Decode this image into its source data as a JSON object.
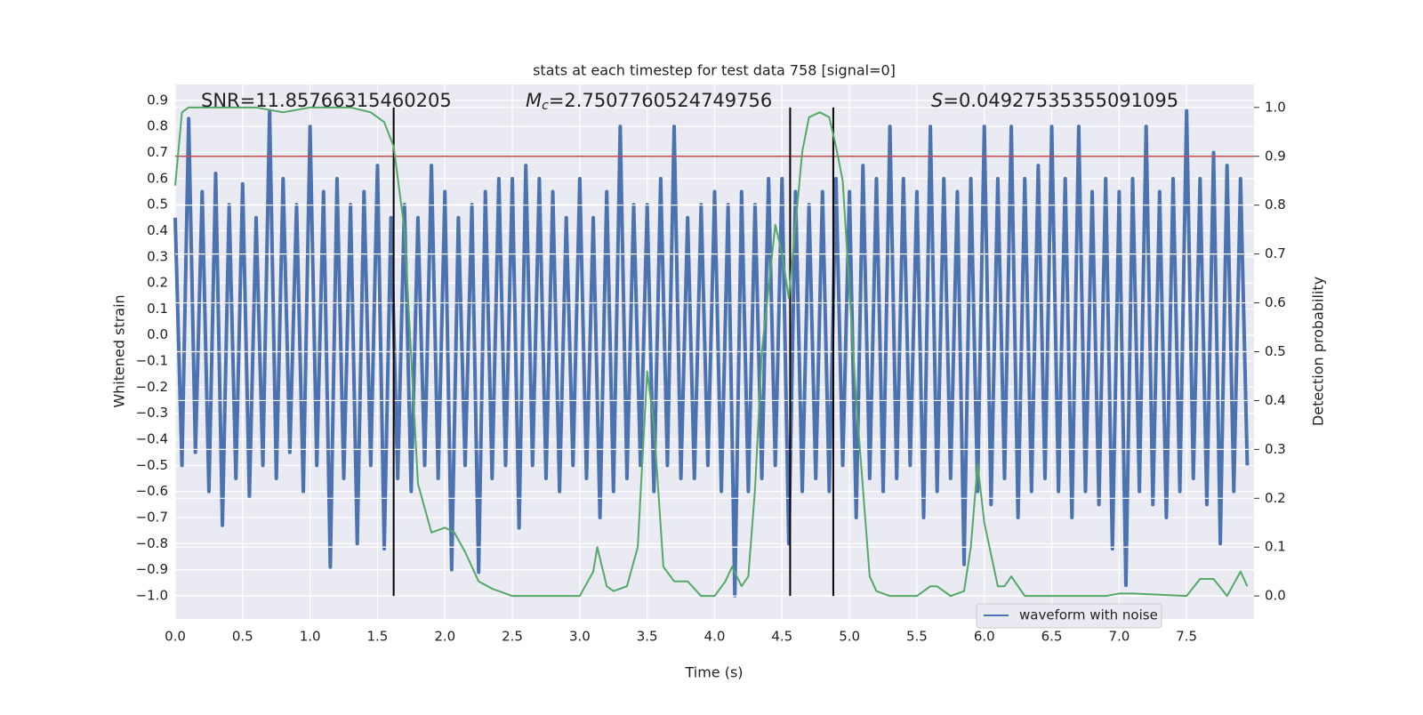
{
  "chart_data": {
    "type": "line",
    "title": "stats at each timestep for test data 758 [signal=0]",
    "xlabel": "Time (s)",
    "ylabel": "Whitened strain",
    "y2label": "Detection probability",
    "annotations": [
      {
        "text": "SNR=11.85766315460205"
      },
      {
        "symbol": "M",
        "subscript": "c",
        "text": "=2.7507760524749756"
      },
      {
        "symbol": "S",
        "text": "=0.04927535355091095"
      }
    ],
    "xlim": [
      0,
      8
    ],
    "ylim": [
      -1.089,
      0.961
    ],
    "y2lim": [
      -0.047,
      1.047
    ],
    "xticks": [
      {
        "value": 0,
        "label": "0.0"
      },
      0.5,
      {
        "value": 1,
        "label": "1.0"
      },
      1.5,
      {
        "value": 2,
        "label": "2.0"
      },
      2.5,
      {
        "value": 3,
        "label": "3.0"
      },
      3.5,
      {
        "value": 4,
        "label": "4.0"
      },
      4.5,
      {
        "value": 5,
        "label": "5.0"
      },
      5.5,
      {
        "value": 6,
        "label": "6.0"
      },
      6.5,
      {
        "value": 7,
        "label": "7.0"
      },
      7.5
    ],
    "yticks": [
      {
        "value": -1,
        "label": "−1.0"
      },
      {
        "value": -0.9,
        "label": "−0.9"
      },
      {
        "value": -0.8,
        "label": "−0.8"
      },
      {
        "value": -0.7,
        "label": "−0.7"
      },
      {
        "value": -0.6,
        "label": "−0.6"
      },
      {
        "value": -0.5,
        "label": "−0.5"
      },
      {
        "value": -0.4,
        "label": "−0.4"
      },
      {
        "value": -0.3,
        "label": "−0.3"
      },
      {
        "value": -0.2,
        "label": "−0.2"
      },
      {
        "value": -0.1,
        "label": "−0.1"
      },
      {
        "value": 0,
        "label": "0.0"
      },
      0.1,
      0.2,
      0.3,
      0.4,
      0.5,
      0.6,
      0.7,
      0.8,
      0.9
    ],
    "y2ticks": [
      {
        "value": 0,
        "label": "0.0"
      },
      0.1,
      0.2,
      0.3,
      0.4,
      0.5,
      0.6,
      0.7,
      0.8,
      0.9,
      {
        "value": 1,
        "label": "1.0"
      }
    ],
    "grid": true,
    "legend": "lower right",
    "hlines": [
      {
        "value": 0.9,
        "axis": "y2",
        "color": "#c44e52"
      }
    ],
    "vlines": {
      "x": [
        1.62,
        4.56,
        4.88
      ],
      "span": [
        0,
        1
      ],
      "axis": "y2",
      "color": "#000000"
    },
    "series": [
      {
        "name": "waveform with noise",
        "color": "#4c72b0",
        "x": [
          0,
          0.05,
          0.1,
          0.15,
          0.2,
          0.25,
          0.3,
          0.35,
          0.4,
          0.45,
          0.5,
          0.55,
          0.6,
          0.65,
          0.7,
          0.75,
          0.8,
          0.85,
          0.9,
          0.95,
          1,
          1.05,
          1.1,
          1.15,
          1.2,
          1.25,
          1.3,
          1.35,
          1.4,
          1.45,
          1.5,
          1.55,
          1.6,
          1.65,
          1.7,
          1.75,
          1.8,
          1.85,
          1.9,
          1.95,
          2,
          2.05,
          2.1,
          2.15,
          2.2,
          2.25,
          2.3,
          2.35,
          2.4,
          2.45,
          2.5,
          2.55,
          2.6,
          2.65,
          2.7,
          2.75,
          2.8,
          2.85,
          2.9,
          2.95,
          3,
          3.05,
          3.1,
          3.15,
          3.2,
          3.25,
          3.3,
          3.35,
          3.4,
          3.45,
          3.5,
          3.55,
          3.6,
          3.65,
          3.7,
          3.75,
          3.8,
          3.85,
          3.9,
          3.95,
          4,
          4.05,
          4.1,
          4.15,
          4.2,
          4.25,
          4.3,
          4.35,
          4.4,
          4.45,
          4.5,
          4.55,
          4.6,
          4.65,
          4.7,
          4.75,
          4.8,
          4.85,
          4.9,
          4.95,
          5,
          5.05,
          5.1,
          5.15,
          5.2,
          5.25,
          5.3,
          5.35,
          5.4,
          5.45,
          5.5,
          5.55,
          5.6,
          5.65,
          5.7,
          5.75,
          5.8,
          5.85,
          5.9,
          5.95,
          6,
          6.05,
          6.1,
          6.15,
          6.2,
          6.25,
          6.3,
          6.35,
          6.4,
          6.45,
          6.5,
          6.55,
          6.6,
          6.65,
          6.7,
          6.75,
          6.8,
          6.85,
          6.9,
          6.95,
          7,
          7.05,
          7.1,
          7.15,
          7.2,
          7.25,
          7.3,
          7.35,
          7.4,
          7.45,
          7.5,
          7.55,
          7.6,
          7.65,
          7.7,
          7.75,
          7.8,
          7.85,
          7.9,
          7.95
        ],
        "values": [
          0.45,
          -0.5,
          0.83,
          -0.45,
          0.55,
          -0.6,
          0.62,
          -0.73,
          0.5,
          -0.55,
          0.58,
          -0.62,
          0.45,
          -0.5,
          0.86,
          -0.55,
          0.6,
          -0.45,
          0.5,
          -0.6,
          0.8,
          -0.5,
          0.55,
          -0.89,
          0.6,
          -0.55,
          0.5,
          -0.8,
          0.55,
          -0.5,
          0.65,
          -0.82,
          0.45,
          -0.55,
          0.5,
          -0.6,
          0.45,
          -0.5,
          0.65,
          -0.55,
          0.55,
          -0.9,
          0.45,
          -0.5,
          0.5,
          -0.91,
          0.55,
          -0.55,
          0.6,
          -0.5,
          0.6,
          -0.74,
          0.65,
          -0.5,
          0.6,
          -0.55,
          0.55,
          -0.6,
          0.45,
          -0.5,
          0.6,
          -0.55,
          0.45,
          -0.7,
          0.55,
          -0.6,
          0.8,
          -0.55,
          0.5,
          -0.5,
          0.5,
          -0.6,
          0.6,
          -0.5,
          0.8,
          -0.55,
          0.45,
          -0.55,
          0.5,
          -0.5,
          0.55,
          -0.6,
          0.5,
          -1.0,
          0.55,
          -0.6,
          0.5,
          -0.55,
          0.6,
          -0.5,
          0.6,
          -0.8,
          0.55,
          -0.6,
          0.5,
          -0.55,
          0.55,
          -0.6,
          0.6,
          -0.5,
          0.55,
          -0.7,
          0.65,
          -0.55,
          0.6,
          -0.6,
          0.8,
          -0.55,
          0.6,
          -0.5,
          0.55,
          -0.7,
          0.8,
          -0.6,
          0.6,
          -0.55,
          0.55,
          -0.88,
          0.6,
          -0.6,
          0.8,
          -0.65,
          0.6,
          -0.55,
          0.8,
          -0.7,
          0.6,
          -0.6,
          0.65,
          -0.55,
          0.8,
          -0.6,
          0.6,
          -0.7,
          0.8,
          -0.6,
          0.55,
          -0.65,
          0.6,
          -0.82,
          0.55,
          -0.96,
          0.6,
          -0.6,
          0.8,
          -0.65,
          0.55,
          -0.7,
          0.6,
          -0.6,
          0.86,
          -0.55,
          0.6,
          -0.65,
          0.7,
          -0.8,
          0.65,
          -0.6,
          0.6,
          -0.5
        ]
      },
      {
        "color": "#55a868",
        "axis": "y2",
        "x": [
          0,
          0.05,
          0.1,
          0.3,
          0.6,
          0.8,
          1.0,
          1.3,
          1.45,
          1.55,
          1.62,
          1.7,
          1.8,
          1.9,
          2.0,
          2.07,
          2.15,
          2.25,
          2.35,
          2.5,
          2.8,
          3.0,
          3.1,
          3.13,
          3.2,
          3.25,
          3.35,
          3.43,
          3.5,
          3.55,
          3.62,
          3.7,
          3.8,
          3.9,
          4.0,
          4.08,
          4.13,
          4.2,
          4.25,
          4.3,
          4.35,
          4.45,
          4.5,
          4.55,
          4.65,
          4.7,
          4.78,
          4.85,
          4.9,
          4.95,
          5.05,
          5.15,
          5.2,
          5.3,
          5.5,
          5.6,
          5.65,
          5.75,
          5.85,
          5.9,
          5.95,
          6.0,
          6.1,
          6.15,
          6.2,
          6.3,
          6.5,
          6.9,
          7.0,
          7.1,
          7.5,
          7.6,
          7.7,
          7.8,
          7.9,
          7.95
        ],
        "values": [
          0.84,
          0.99,
          1.0,
          1.0,
          1.0,
          0.99,
          1.0,
          1.0,
          0.99,
          0.97,
          0.92,
          0.75,
          0.23,
          0.13,
          0.14,
          0.13,
          0.09,
          0.03,
          0.015,
          0.0,
          0.0,
          0.0,
          0.05,
          0.1,
          0.02,
          0.01,
          0.02,
          0.1,
          0.46,
          0.35,
          0.06,
          0.03,
          0.03,
          0.0,
          0.0,
          0.03,
          0.06,
          0.02,
          0.04,
          0.22,
          0.5,
          0.76,
          0.7,
          0.61,
          0.91,
          0.98,
          0.99,
          0.98,
          0.92,
          0.85,
          0.4,
          0.04,
          0.01,
          0.0,
          0.0,
          0.02,
          0.02,
          0.0,
          0.01,
          0.1,
          0.27,
          0.15,
          0.02,
          0.02,
          0.04,
          0.0,
          0.0,
          0.0,
          0.005,
          0.005,
          0.0,
          0.035,
          0.035,
          0.0,
          0.05,
          0.02
        ]
      }
    ]
  }
}
